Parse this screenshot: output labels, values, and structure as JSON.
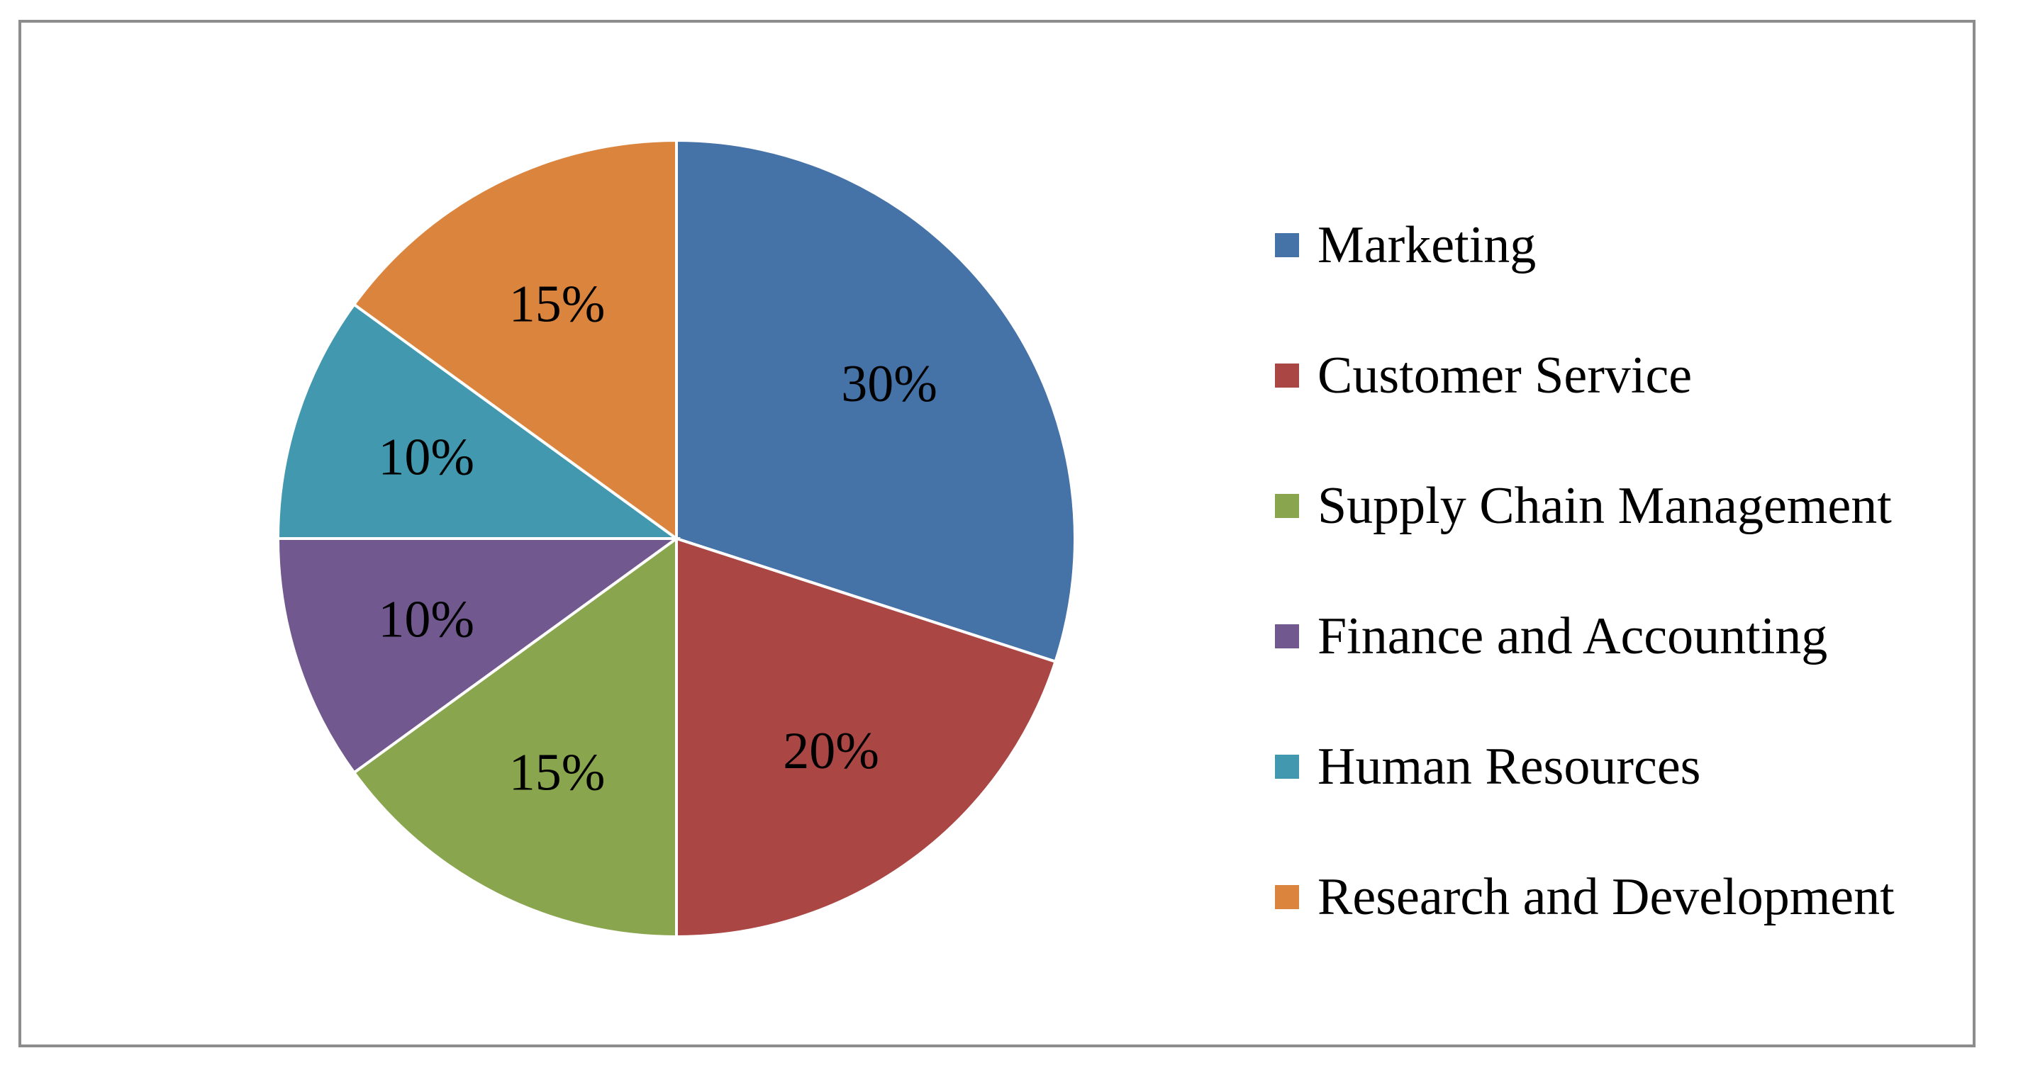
{
  "chart_data": {
    "type": "pie",
    "categories": [
      "Marketing",
      "Customer Service",
      "Supply Chain Management",
      "Finance and Accounting",
      "Human Resources",
      "Research and Development"
    ],
    "values": [
      30,
      20,
      15,
      10,
      10,
      15
    ],
    "labels": [
      "30%",
      "20%",
      "15%",
      "10%",
      "10%",
      "15%"
    ],
    "colors": [
      "#4572A7",
      "#AA4643",
      "#89A54E",
      "#71588F",
      "#4198AF",
      "#DB843D"
    ],
    "legend_position": "right",
    "title": ""
  }
}
